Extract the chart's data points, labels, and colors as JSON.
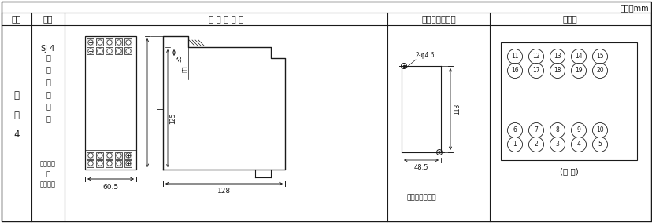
{
  "unit_text": "单位：mm",
  "header_cols": [
    "图号",
    "结构",
    "外 形 尺 寸 图",
    "安装开孔尺孔图",
    "端子图"
  ],
  "col1_text": "附\n图\n4",
  "col2_text1": "SJ-4",
  "col2_text2": "凸\n出\n式\n前\n接\n线",
  "col2_text3": "卡轨安装\n或\n螺钉安装",
  "dim_60_5": "60.5",
  "dim_128": "128",
  "dim_125": "125",
  "dim_35": "35",
  "dim_65": "卡轨",
  "dim_hole_text": "2-φ4.5",
  "dim_113": "113",
  "dim_48_5": "48.5",
  "screw_text": "螺钉安装开孔图",
  "zheng_shi": "(正 视)",
  "terminals_top": [
    [
      11,
      12,
      13,
      14,
      15
    ],
    [
      16,
      17,
      18,
      19,
      20
    ]
  ],
  "terminals_bottom": [
    [
      6,
      7,
      8,
      9,
      10
    ],
    [
      1,
      2,
      3,
      4,
      5
    ]
  ],
  "bg_color": "#ffffff",
  "line_color": "#1a1a1a",
  "text_color": "#1a1a1a"
}
